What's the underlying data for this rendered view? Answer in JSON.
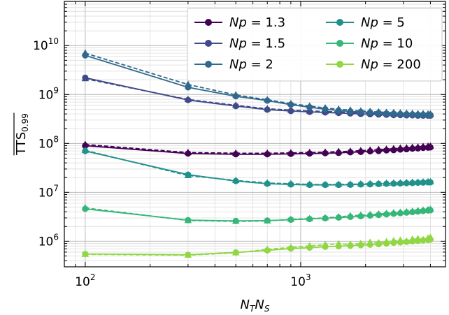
{
  "chart_data": {
    "type": "line",
    "xlabel": {
      "base": "N",
      "sub1": "T",
      "mid": "N",
      "sub2": "S"
    },
    "ylabel": {
      "base": "TTS",
      "sub": "0.99"
    },
    "x_scale": "log",
    "y_scale": "log",
    "xlim": [
      80,
      4700
    ],
    "ylim": [
      300000,
      80000000000
    ],
    "x_major_ticks": [
      {
        "value": 100,
        "base": "10",
        "exp": "2"
      },
      {
        "value": 1000,
        "base": "10",
        "exp": "3"
      }
    ],
    "y_major_ticks": [
      {
        "value": 1000000,
        "base": "10",
        "exp": "6"
      },
      {
        "value": 10000000,
        "base": "10",
        "exp": "7"
      },
      {
        "value": 100000000,
        "base": "10",
        "exp": "8"
      },
      {
        "value": 1000000000,
        "base": "10",
        "exp": "9"
      },
      {
        "value": 10000000000,
        "base": "10",
        "exp": "10"
      }
    ],
    "grid": true,
    "legend_position": "top-right",
    "legend_columns": 2,
    "x": [
      100,
      300,
      500,
      700,
      900,
      1100,
      1300,
      1500,
      1700,
      1900,
      2100,
      2300,
      2500,
      2700,
      2900,
      3100,
      3300,
      3500,
      3700,
      3900,
      4000
    ],
    "solid_marker": "circle",
    "dashed_marker": "triangle",
    "series": [
      {
        "name": "Np = 1.3",
        "color": "#440154",
        "solid": [
          90000000.0,
          62000000.0,
          60000000.0,
          60000000.0,
          61000000.0,
          62000000.0,
          63000000.0,
          64000000.0,
          66000000.0,
          67000000.0,
          69000000.0,
          70000000.0,
          72000000.0,
          73000000.0,
          75000000.0,
          76000000.0,
          78000000.0,
          79000000.0,
          81000000.0,
          82000000.0,
          83000000.0
        ],
        "dashed": [
          95000000.0,
          65000000.0,
          63000000.0,
          63000000.0,
          64000000.0,
          65000000.0,
          66000000.0,
          68000000.0,
          69000000.0,
          71000000.0,
          73000000.0,
          75000000.0,
          76000000.0,
          78000000.0,
          80000000.0,
          81000000.0,
          83000000.0,
          84000000.0,
          86000000.0,
          87000000.0,
          88000000.0
        ]
      },
      {
        "name": "Np = 1.5",
        "color": "#3e4a89",
        "solid": [
          2200000000.0,
          770000000.0,
          580000000.0,
          490000000.0,
          460000000.0,
          440000000.0,
          430000000.0,
          420000000.0,
          410000000.0,
          400000000.0,
          395000000.0,
          390000000.0,
          385000000.0,
          380000000.0,
          380000000.0,
          375000000.0,
          375000000.0,
          370000000.0,
          370000000.0,
          370000000.0,
          370000000.0
        ],
        "dashed": [
          2100000000.0,
          790000000.0,
          600000000.0,
          510000000.0,
          480000000.0,
          460000000.0,
          450000000.0,
          440000000.0,
          430000000.0,
          420000000.0,
          415000000.0,
          410000000.0,
          405000000.0,
          400000000.0,
          400000000.0,
          395000000.0,
          395000000.0,
          390000000.0,
          390000000.0,
          390000000.0,
          390000000.0
        ]
      },
      {
        "name": "Np = 2",
        "color": "#31688e",
        "solid": [
          6300000000.0,
          1400000000.0,
          920000000.0,
          750000000.0,
          620000000.0,
          550000000.0,
          500000000.0,
          470000000.0,
          450000000.0,
          440000000.0,
          430000000.0,
          420000000.0,
          410000000.0,
          405000000.0,
          400000000.0,
          395000000.0,
          390000000.0,
          385000000.0,
          385000000.0,
          380000000.0,
          380000000.0
        ],
        "dashed": [
          7000000000.0,
          1600000000.0,
          980000000.0,
          780000000.0,
          650000000.0,
          580000000.0,
          530000000.0,
          500000000.0,
          480000000.0,
          460000000.0,
          450000000.0,
          440000000.0,
          430000000.0,
          425000000.0,
          420000000.0,
          415000000.0,
          410000000.0,
          405000000.0,
          405000000.0,
          400000000.0,
          400000000.0
        ]
      },
      {
        "name": "Np = 5",
        "color": "#21918c",
        "solid": [
          70000000.0,
          23000000.0,
          17000000.0,
          15000000.0,
          14500000.0,
          14200000.0,
          14200000.0,
          14200000.0,
          14300000.0,
          14500000.0,
          14600000.0,
          14800000.0,
          15000000.0,
          15100000.0,
          15200000.0,
          15400000.0,
          15500000.0,
          15700000.0,
          15800000.0,
          16000000.0,
          16000000.0
        ],
        "dashed": [
          72000000.0,
          22000000.0,
          17500000.0,
          15500000.0,
          15000000.0,
          14500000.0,
          14400000.0,
          14500000.0,
          14600000.0,
          14800000.0,
          15000000.0,
          15100000.0,
          15300000.0,
          15500000.0,
          15600000.0,
          15800000.0,
          16000000.0,
          16100000.0,
          16300000.0,
          16400000.0,
          16500000.0
        ]
      },
      {
        "name": "Np = 10",
        "color": "#35b779",
        "solid": [
          4600000.0,
          2700000.0,
          2600000.0,
          2650000.0,
          2750000.0,
          2850000.0,
          2950000.0,
          3050000.0,
          3150000.0,
          3250000.0,
          3350000.0,
          3450000.0,
          3550000.0,
          3650000.0,
          3750000.0,
          3850000.0,
          3950000.0,
          4050000.0,
          4150000.0,
          4250000.0,
          4300000.0
        ],
        "dashed": [
          4800000.0,
          2650000.0,
          2550000.0,
          2600000.0,
          2800000.0,
          2900000.0,
          3000000.0,
          3150000.0,
          3300000.0,
          3400000.0,
          3500000.0,
          3600000.0,
          3700000.0,
          3800000.0,
          3900000.0,
          4000000.0,
          4100000.0,
          4200000.0,
          4300000.0,
          4400000.0,
          4500000.0
        ]
      },
      {
        "name": "Np = 200",
        "color": "#90d743",
        "solid": [
          550000.0,
          530000.0,
          590000.0,
          650000.0,
          710000.0,
          740000.0,
          770000.0,
          790000.0,
          810000.0,
          830000.0,
          850000.0,
          870000.0,
          900000.0,
          930000.0,
          950000.0,
          970000.0,
          1000000.0,
          1020000.0,
          1040000.0,
          1060000.0,
          1080000.0
        ],
        "dashed": [
          540000.0,
          520000.0,
          580000.0,
          680000.0,
          750000.0,
          800000.0,
          850000.0,
          880000.0,
          860000.0,
          890000.0,
          950000.0,
          930000.0,
          980000.0,
          1020000.0,
          1050000.0,
          1000000.0,
          1100000.0,
          1120000.0,
          1080000.0,
          1150000.0,
          1200000.0
        ]
      }
    ]
  }
}
